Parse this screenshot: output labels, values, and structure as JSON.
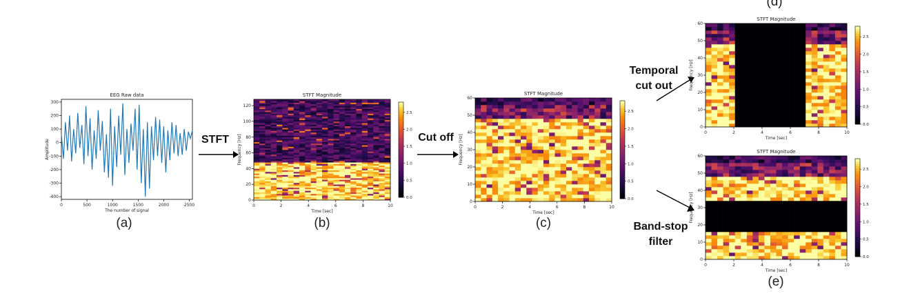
{
  "pipeline": {
    "steps": [
      {
        "label": "STFT"
      },
      {
        "label": "Cut off"
      },
      {
        "label_lines": [
          "Temporal",
          "cut out"
        ]
      },
      {
        "label_lines": [
          "Band-stop",
          "filter"
        ]
      }
    ]
  },
  "panels": {
    "a": {
      "sublabel": "(a)",
      "chart_data": {
        "type": "line",
        "title": "EEG Raw data",
        "xlabel": "The number of signal",
        "ylabel": "Amplitude",
        "xlim": [
          0,
          2560
        ],
        "ylim": [
          -420,
          320
        ],
        "x_ticks": [
          0,
          500,
          1000,
          1500,
          2000,
          2500
        ],
        "y_ticks": [
          -400,
          -300,
          -200,
          -100,
          0,
          100,
          200,
          300
        ],
        "line_color": "#1f77b4",
        "series": [
          {
            "x": [
              0,
              40,
              80,
              120,
              160,
              200,
              240,
              280,
              320,
              360,
              400,
              440,
              480,
              520,
              560,
              600,
              640,
              680,
              720,
              760,
              800,
              840,
              880,
              920,
              960,
              1000,
              1040,
              1080,
              1120,
              1160,
              1200,
              1240,
              1280,
              1320,
              1360,
              1400,
              1440,
              1480,
              1520,
              1560,
              1600,
              1640,
              1680,
              1720,
              1760,
              1800,
              1840,
              1880,
              1920,
              1960,
              2000,
              2040,
              2080,
              2120,
              2160,
              2200,
              2240,
              2280,
              2320,
              2360,
              2400,
              2440,
              2480,
              2520,
              2560
            ],
            "y": [
              60,
              -120,
              150,
              -60,
              200,
              -140,
              100,
              -80,
              220,
              -40,
              130,
              -160,
              270,
              -100,
              180,
              -200,
              90,
              -120,
              240,
              -60,
              160,
              -220,
              60,
              -260,
              250,
              -320,
              120,
              -180,
              200,
              -90,
              290,
              -240,
              100,
              -150,
              140,
              -60,
              250,
              -200,
              280,
              -300,
              100,
              -400,
              150,
              -340,
              120,
              -130,
              190,
              -100,
              170,
              -150,
              120,
              -220,
              90,
              -130,
              150,
              -80,
              130,
              -100,
              70,
              -90,
              100,
              -60,
              80,
              30,
              90
            ]
          }
        ]
      }
    },
    "b": {
      "sublabel": "(b)",
      "chart_data": {
        "type": "heatmap",
        "title": "STFT Magnitude",
        "xlabel": "Time [sec]",
        "ylabel": "Frequency [Hz]",
        "xlim": [
          0,
          10
        ],
        "ylim": [
          0,
          128
        ],
        "x_ticks": [
          0,
          2,
          4,
          6,
          8,
          10
        ],
        "y_ticks": [
          0,
          20,
          40,
          60,
          80,
          100,
          120
        ],
        "cols": 24,
        "rows": 64,
        "cutoff_hz": 48,
        "colorbar": {
          "min": 0,
          "max": 2.8,
          "ticks": [
            "0.0",
            "0.5",
            "1.0",
            "1.5",
            "2.0",
            "2.5"
          ]
        }
      }
    },
    "c": {
      "sublabel": "(c)",
      "chart_data": {
        "type": "heatmap",
        "title": "STFT Magnitude",
        "xlabel": "Time [sec]",
        "ylabel": "Frequency [Hz]",
        "xlim": [
          0,
          10
        ],
        "ylim": [
          0,
          60
        ],
        "x_ticks": [
          0,
          2,
          4,
          6,
          8,
          10
        ],
        "y_ticks": [
          0,
          10,
          20,
          30,
          40,
          50,
          60
        ],
        "cols": 24,
        "rows": 30,
        "colorbar": {
          "min": 0,
          "max": 2.8,
          "ticks": [
            "0.0",
            "0.5",
            "1.0",
            "1.5",
            "2.0",
            "2.5"
          ]
        }
      }
    },
    "d": {
      "sublabel": "(d)",
      "chart_data": {
        "type": "heatmap",
        "title": "STFT Magnitude",
        "xlabel": "Time [sec]",
        "ylabel": "Frequency [Hz]",
        "xlim": [
          0,
          10
        ],
        "ylim": [
          0,
          60
        ],
        "x_ticks": [
          0,
          2,
          4,
          6,
          8,
          10
        ],
        "y_ticks": [
          0,
          10,
          20,
          30,
          40,
          50,
          60
        ],
        "cols": 24,
        "rows": 30,
        "masked_time_sec": [
          2,
          7
        ],
        "colorbar": {
          "min": 0,
          "max": 2.8,
          "ticks": [
            "0.0",
            "0.5",
            "1.0",
            "1.5",
            "2.0",
            "2.5"
          ]
        }
      }
    },
    "e": {
      "sublabel": "(e)",
      "chart_data": {
        "type": "heatmap",
        "title": "STFT Magnitude",
        "xlabel": "Time [sec]",
        "ylabel": "Frequency [Hz]",
        "xlim": [
          0,
          10
        ],
        "ylim": [
          0,
          60
        ],
        "x_ticks": [
          0,
          2,
          4,
          6,
          8,
          10
        ],
        "y_ticks": [
          0,
          10,
          20,
          30,
          40,
          50,
          60
        ],
        "cols": 24,
        "rows": 30,
        "masked_freq_hz": [
          15,
          35
        ],
        "colorbar": {
          "min": 0,
          "max": 2.8,
          "ticks": [
            "0.0",
            "0.5",
            "1.0",
            "1.5",
            "2.0",
            "2.5"
          ]
        }
      }
    }
  }
}
